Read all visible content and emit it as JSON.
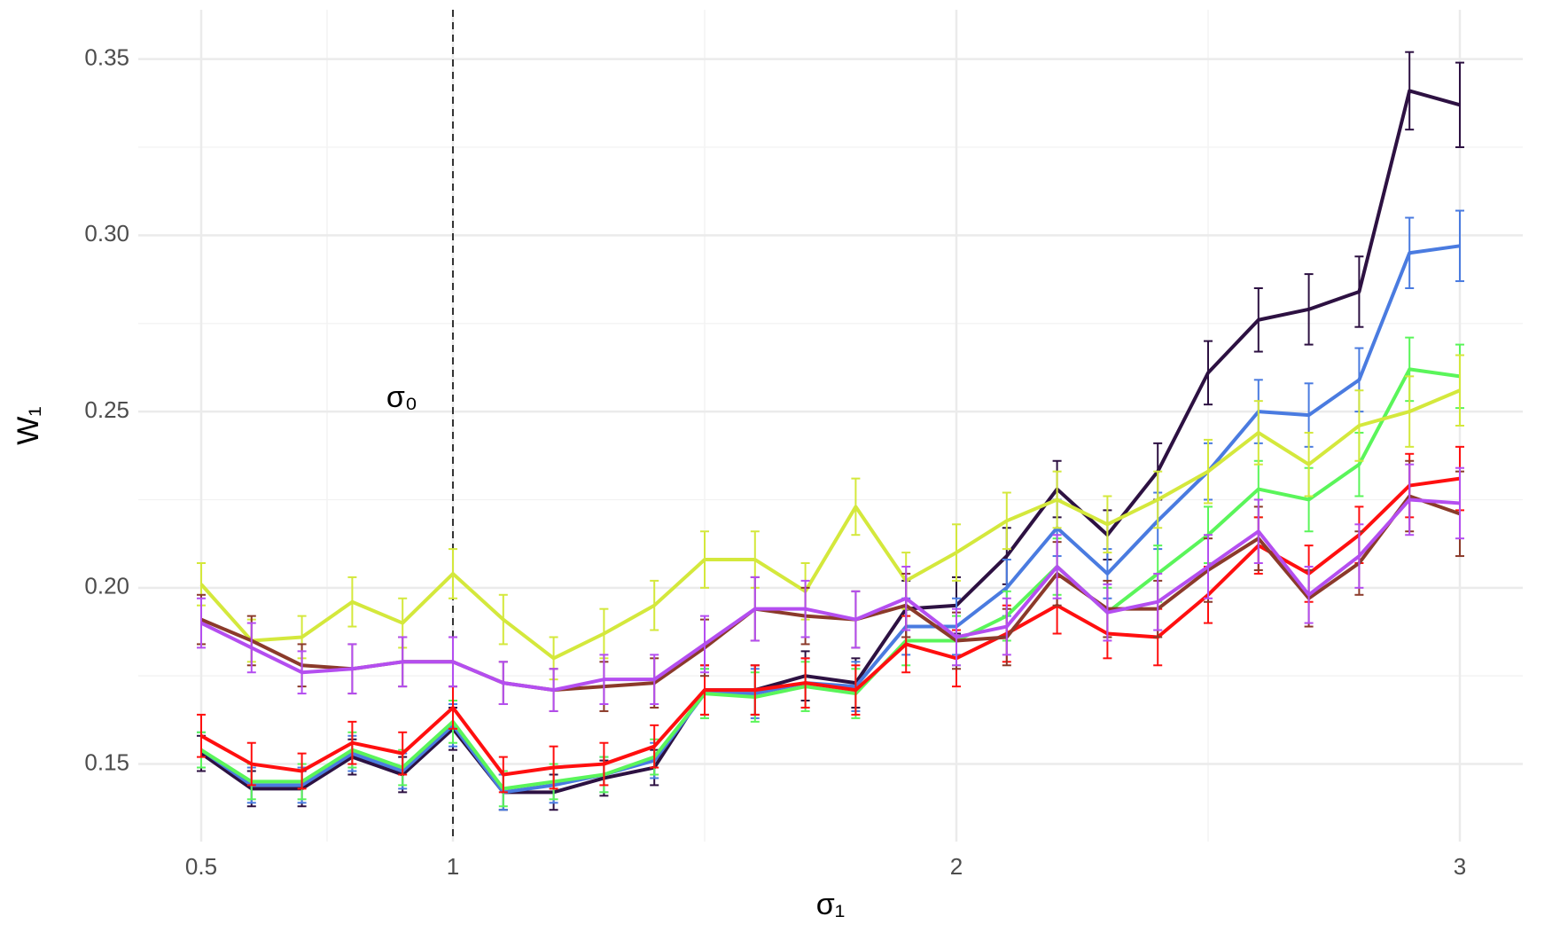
{
  "chart_data": {
    "type": "line",
    "x_label": "σ₁",
    "y_label": "W₁",
    "annotation": "σ₀",
    "vline": 1,
    "x": [
      0.5,
      0.6,
      0.7,
      0.8,
      0.9,
      1.0,
      1.1,
      1.2,
      1.3,
      1.4,
      1.5,
      1.6,
      1.7,
      1.8,
      1.9,
      2.0,
      2.1,
      2.2,
      2.3,
      2.4,
      2.5,
      2.6,
      2.7,
      2.8,
      2.9,
      3.0
    ],
    "xlim": [
      0.375,
      3.125
    ],
    "xticks": [
      0.5,
      1,
      2,
      3
    ],
    "x_minor_ticks": [
      0.75,
      1.5,
      2.5
    ],
    "ylim": [
      0.128,
      0.364
    ],
    "yticks": [
      0.15,
      {
        "value": 0.2,
        "label": "0.20"
      },
      0.25,
      {
        "value": 0.3,
        "label": "0.30"
      },
      0.35
    ],
    "y_minor_ticks": [
      0.175,
      0.225,
      0.275,
      0.325
    ],
    "grid": true,
    "series": [
      {
        "color": "#2d1142",
        "values": [
          0.153,
          0.143,
          0.143,
          0.152,
          0.147,
          0.16,
          0.142,
          0.142,
          0.146,
          0.149,
          0.171,
          0.171,
          0.175,
          0.173,
          0.194,
          0.195,
          0.209,
          0.228,
          0.215,
          0.233,
          0.261,
          0.276,
          0.279,
          0.284,
          0.341,
          0.337
        ],
        "errors": [
          0.005,
          0.005,
          0.005,
          0.005,
          0.005,
          0.006,
          0.005,
          0.005,
          0.005,
          0.005,
          0.007,
          0.007,
          0.007,
          0.007,
          0.008,
          0.008,
          0.008,
          0.008,
          0.007,
          0.008,
          0.009,
          0.009,
          0.01,
          0.01,
          0.011,
          0.012
        ]
      },
      {
        "color": "#4a7be0",
        "values": [
          0.154,
          0.144,
          0.144,
          0.153,
          0.148,
          0.161,
          0.142,
          0.144,
          0.147,
          0.151,
          0.17,
          0.17,
          0.173,
          0.172,
          0.189,
          0.189,
          0.2,
          0.217,
          0.204,
          0.219,
          0.233,
          0.25,
          0.249,
          0.259,
          0.295,
          0.297
        ],
        "errors": [
          0.005,
          0.005,
          0.005,
          0.005,
          0.005,
          0.006,
          0.005,
          0.005,
          0.005,
          0.005,
          0.007,
          0.007,
          0.007,
          0.007,
          0.008,
          0.008,
          0.008,
          0.008,
          0.007,
          0.008,
          0.008,
          0.009,
          0.009,
          0.009,
          0.01,
          0.01
        ]
      },
      {
        "color": "#5af55a",
        "values": [
          0.154,
          0.145,
          0.145,
          0.154,
          0.149,
          0.162,
          0.143,
          0.145,
          0.147,
          0.152,
          0.17,
          0.169,
          0.172,
          0.17,
          0.185,
          0.185,
          0.192,
          0.206,
          0.193,
          0.204,
          0.215,
          0.228,
          0.225,
          0.235,
          0.262,
          0.26
        ],
        "errors": [
          0.005,
          0.005,
          0.005,
          0.005,
          0.005,
          0.006,
          0.005,
          0.005,
          0.005,
          0.005,
          0.007,
          0.007,
          0.007,
          0.007,
          0.007,
          0.007,
          0.007,
          0.008,
          0.007,
          0.008,
          0.008,
          0.008,
          0.009,
          0.009,
          0.009,
          0.009
        ]
      },
      {
        "color": "#d4e83c",
        "values": [
          0.201,
          0.185,
          0.186,
          0.196,
          0.19,
          0.204,
          0.191,
          0.18,
          0.187,
          0.195,
          0.208,
          0.208,
          0.199,
          0.223,
          0.202,
          0.21,
          0.219,
          0.225,
          0.218,
          0.225,
          0.233,
          0.244,
          0.235,
          0.246,
          0.25,
          0.256
        ],
        "errors": [
          0.006,
          0.006,
          0.006,
          0.007,
          0.007,
          0.007,
          0.007,
          0.006,
          0.007,
          0.007,
          0.008,
          0.008,
          0.008,
          0.008,
          0.008,
          0.008,
          0.008,
          0.008,
          0.008,
          0.008,
          0.009,
          0.009,
          0.009,
          0.01,
          0.01,
          0.01
        ]
      },
      {
        "color": "#ff0f0f",
        "values": [
          0.158,
          0.15,
          0.148,
          0.156,
          0.153,
          0.166,
          0.147,
          0.149,
          0.15,
          0.155,
          0.171,
          0.171,
          0.173,
          0.171,
          0.184,
          0.18,
          0.187,
          0.195,
          0.187,
          0.186,
          0.198,
          0.212,
          0.204,
          0.215,
          0.229,
          0.231
        ],
        "errors": [
          0.006,
          0.006,
          0.005,
          0.006,
          0.006,
          0.006,
          0.005,
          0.006,
          0.006,
          0.006,
          0.007,
          0.007,
          0.007,
          0.007,
          0.008,
          0.008,
          0.008,
          0.008,
          0.007,
          0.008,
          0.008,
          0.008,
          0.008,
          0.008,
          0.009,
          0.009
        ]
      },
      {
        "color": "#8b3a2a",
        "values": [
          0.191,
          0.185,
          0.178,
          0.177,
          0.179,
          0.179,
          0.173,
          0.171,
          0.172,
          0.173,
          0.183,
          0.194,
          0.192,
          0.191,
          0.195,
          0.185,
          0.186,
          0.204,
          0.194,
          0.194,
          0.205,
          0.214,
          0.197,
          0.207,
          0.226,
          0.221
        ],
        "errors": [
          0.007,
          0.007,
          0.006,
          0.007,
          0.007,
          0.007,
          0.006,
          0.006,
          0.007,
          0.007,
          0.008,
          0.009,
          0.008,
          0.008,
          0.009,
          0.008,
          0.008,
          0.009,
          0.008,
          0.008,
          0.009,
          0.009,
          0.008,
          0.009,
          0.01,
          0.012
        ]
      },
      {
        "color": "#b44ef0",
        "values": [
          0.19,
          0.183,
          0.176,
          0.177,
          0.179,
          0.179,
          0.173,
          0.171,
          0.174,
          0.174,
          0.184,
          0.194,
          0.194,
          0.191,
          0.197,
          0.186,
          0.189,
          0.206,
          0.193,
          0.196,
          0.206,
          0.216,
          0.198,
          0.209,
          0.225,
          0.224
        ],
        "errors": [
          0.007,
          0.007,
          0.006,
          0.007,
          0.007,
          0.007,
          0.006,
          0.006,
          0.007,
          0.007,
          0.008,
          0.009,
          0.008,
          0.008,
          0.009,
          0.008,
          0.008,
          0.009,
          0.008,
          0.008,
          0.009,
          0.009,
          0.008,
          0.009,
          0.01,
          0.01
        ]
      }
    ]
  }
}
